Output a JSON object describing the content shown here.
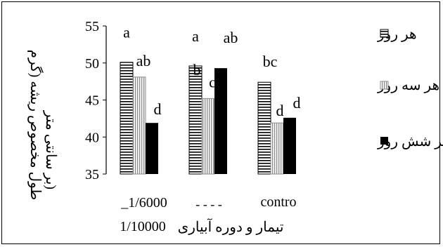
{
  "chart_data": {
    "type": "bar",
    "title": "",
    "xlabel": "تیمار و دوره آبیاری",
    "ylabel": "طول مخصوص ریشه (گرم بر سانتی متر)",
    "ylabel_lines": [
      "طول مخصوص ریشه (گرم",
      "بر سانتی متر)"
    ],
    "ylim": [
      35,
      55
    ],
    "yticks": [
      35,
      40,
      45,
      50,
      55
    ],
    "grid": false,
    "legend_position": "right",
    "categories": [
      "1/6000",
      "1/10000",
      "control"
    ],
    "category_labels": [
      "_1/6000",
      "- - - -",
      "contro"
    ],
    "extra_label": "1/10000",
    "series": [
      {
        "name": "هر روز",
        "pattern": "horizontal",
        "values": [
          50.1,
          49.6,
          47.4
        ],
        "letters": [
          "a",
          "a",
          "bc"
        ]
      },
      {
        "name": "هر سه روز",
        "pattern": "vertical",
        "values": [
          48.1,
          45.2,
          41.9
        ],
        "letters": [
          "ab",
          "c",
          "d"
        ]
      },
      {
        "name": "هر شش روز",
        "pattern": "solid",
        "values": [
          41.9,
          49.3,
          42.6
        ],
        "letters": [
          "d",
          "ab",
          "d"
        ]
      }
    ],
    "extra_letters": [
      {
        "category": 1,
        "text": "b"
      }
    ],
    "colors": {
      "solid": "#000000",
      "stripe": "#000000",
      "background": "#ffffff"
    }
  }
}
